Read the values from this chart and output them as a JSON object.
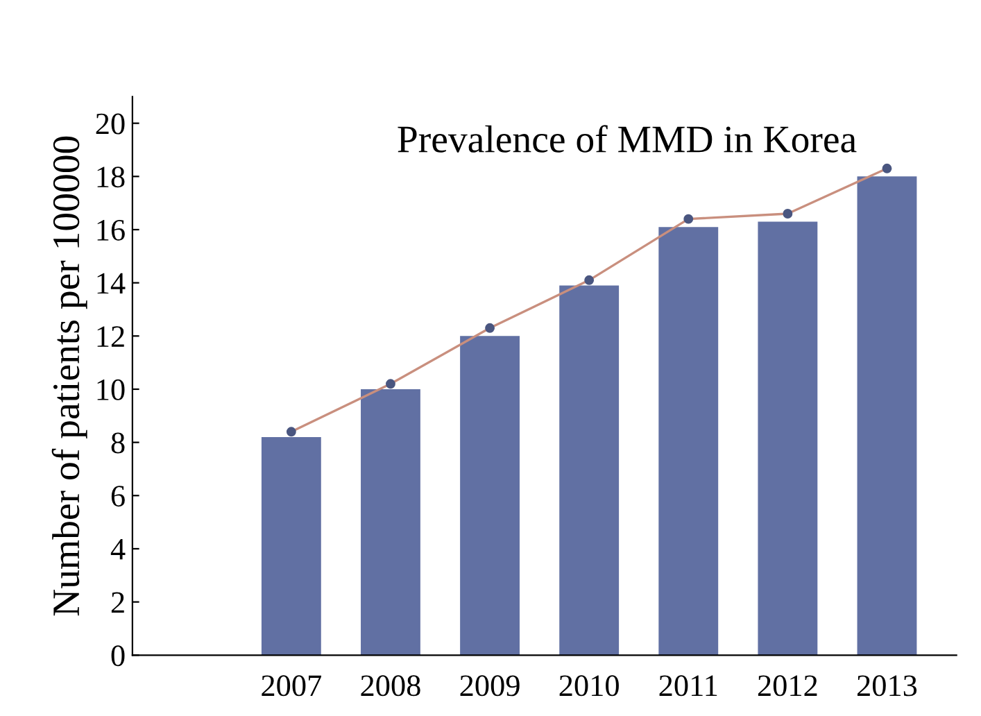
{
  "chart_data": {
    "type": "bar",
    "title": "Prevalence of MMD in Korea",
    "ylabel": "Number of patients per 100000",
    "categories": [
      "2007",
      "2008",
      "2009",
      "2010",
      "2011",
      "2012",
      "2013"
    ],
    "series": [
      {
        "color": "#6170a3",
        "values": [
          8.2,
          10.0,
          12.0,
          13.9,
          16.1,
          16.3,
          18.0
        ]
      },
      {
        "type": "line",
        "color": "#c98f7e",
        "marker": "circle",
        "values": [
          8.4,
          10.2,
          12.3,
          14.1,
          16.4,
          16.6,
          18.3
        ]
      }
    ],
    "ylim": [
      0,
      21
    ],
    "yticks": [
      0,
      2,
      4,
      6,
      8,
      10,
      12,
      14,
      16,
      18,
      20
    ],
    "grid": false
  }
}
